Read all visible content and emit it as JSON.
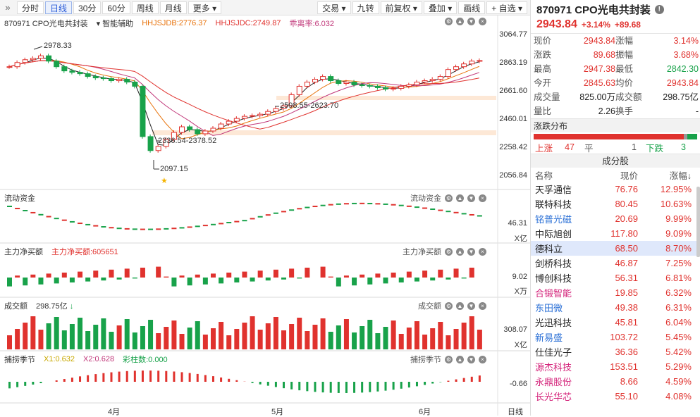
{
  "toolbar": {
    "tabs": [
      "分时",
      "日线",
      "30分",
      "60分",
      "周线",
      "月线",
      "更多"
    ],
    "active_tab": "日线",
    "tools": [
      "交易",
      "九转",
      "前复权",
      "叠加",
      "画线",
      "自选"
    ]
  },
  "main_legend": {
    "name": "870971 CPO光电共封装",
    "assist": "智能辅助",
    "hhjsjdb": "HHJSJDB:2776.37",
    "hhjsjdc": "HHJSJDC:2749.87",
    "deviation": "乖离率:6.032"
  },
  "price_axis": [
    "3064.77",
    "2863.19",
    "2661.60",
    "2460.01",
    "2258.42",
    "2056.84"
  ],
  "annotations": {
    "high": "2978.33",
    "range1": "2598.55-2623.70",
    "range2": "2336.54-2378.52",
    "low": "2097.15"
  },
  "panels": {
    "flow": {
      "title": "流动资金",
      "right_title": "流动资金",
      "axis": "46.31",
      "unit": "X亿"
    },
    "main_buy": {
      "title": "主力净买额",
      "value_label": "主力净买额:605651",
      "right_title": "主力净买额",
      "axis": "9.02",
      "unit": "X万"
    },
    "turnover": {
      "title": "成交额",
      "value_label": "298.75亿",
      "right_title": "成交额",
      "axis": "308.07",
      "unit": "X亿"
    },
    "season": {
      "title": "捕捞季节",
      "x1": "X1:0.632",
      "x2": "X2:0.628",
      "bar": "彩柱数:0.000",
      "right_title": "捕捞季节",
      "axis": "-0.66"
    }
  },
  "months": [
    "4月",
    "5月",
    "6月"
  ],
  "period_tag": "日线",
  "quote": {
    "code_name": "870971 CPO光电共封装",
    "price": "2943.84",
    "pct": "+3.14%",
    "change": "+89.68",
    "rows": [
      [
        "现价",
        "2943.84",
        "涨幅",
        "3.14%"
      ],
      [
        "涨跌",
        "89.68",
        "振幅",
        "3.68%"
      ],
      [
        "最高",
        "2947.38",
        "最低",
        "2842.30"
      ],
      [
        "今开",
        "2845.63",
        "均价",
        "2943.84"
      ],
      [
        "成交量",
        "825.00万",
        "成交额",
        "298.75亿"
      ],
      [
        "量比",
        "2.26",
        "换手",
        "-"
      ]
    ]
  },
  "distribution": {
    "title": "涨跌分布",
    "up_label": "上涨",
    "up": "47",
    "flat_label": "平",
    "flat": "1",
    "down_label": "下跌",
    "down": "3",
    "up_frac": 0.92,
    "flat_frac": 0.02,
    "down_frac": 0.06
  },
  "components": {
    "title": "成分股",
    "cols": [
      "名称",
      "现价",
      "涨幅↓"
    ],
    "rows": [
      {
        "name": "天孚通信",
        "price": "76.76",
        "chg": "12.95%",
        "color": "#222"
      },
      {
        "name": "联特科技",
        "price": "80.45",
        "chg": "10.63%",
        "color": "#222"
      },
      {
        "name": "铭普光磁",
        "price": "20.69",
        "chg": "9.99%",
        "color": "#2a6fd6"
      },
      {
        "name": "中际旭创",
        "price": "117.80",
        "chg": "9.09%",
        "color": "#222"
      },
      {
        "name": "德科立",
        "price": "68.50",
        "chg": "8.70%",
        "color": "#222"
      },
      {
        "name": "剑桥科技",
        "price": "46.87",
        "chg": "7.25%",
        "color": "#222"
      },
      {
        "name": "博创科技",
        "price": "56.31",
        "chg": "6.81%",
        "color": "#222"
      },
      {
        "name": "合锻智能",
        "price": "19.85",
        "chg": "6.32%",
        "color": "#d4237a"
      },
      {
        "name": "东田微",
        "price": "49.38",
        "chg": "6.31%",
        "color": "#2a6fd6"
      },
      {
        "name": "光迅科技",
        "price": "45.81",
        "chg": "6.04%",
        "color": "#222"
      },
      {
        "name": "新易盛",
        "price": "103.72",
        "chg": "5.45%",
        "color": "#2a6fd6"
      },
      {
        "name": "仕佳光子",
        "price": "36.36",
        "chg": "5.42%",
        "color": "#222"
      },
      {
        "name": "源杰科技",
        "price": "153.51",
        "chg": "5.29%",
        "color": "#d4237a"
      },
      {
        "name": "永鼎股份",
        "price": "8.66",
        "chg": "4.59%",
        "color": "#d4237a"
      },
      {
        "name": "长光华芯",
        "price": "55.10",
        "chg": "4.08%",
        "color": "#d4237a"
      }
    ]
  },
  "colors": {
    "up": "#e0322e",
    "down": "#18a24a",
    "accent": "#2a5bd7"
  }
}
